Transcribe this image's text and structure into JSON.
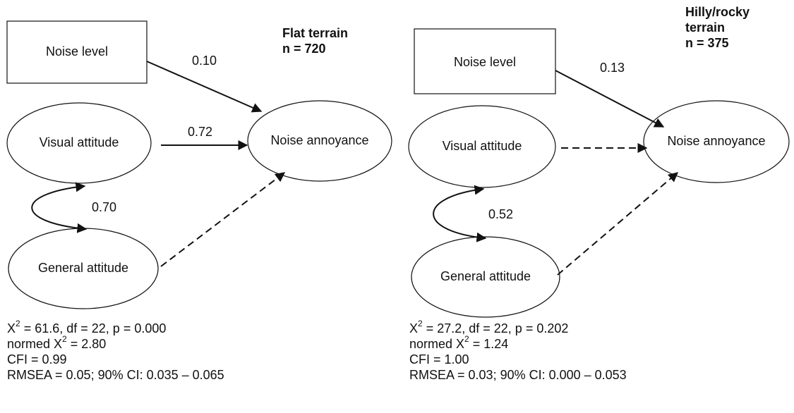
{
  "panels": [
    {
      "title": [
        "Flat terrain",
        "n = 720"
      ],
      "nodes": {
        "noise_level": "Noise level",
        "visual": "Visual attitude",
        "general": "General attitude",
        "annoyance": "Noise annoyance"
      },
      "edges": {
        "noise_to_annoyance": "0.10",
        "visual_to_annoyance": "0.72",
        "visual_general": "0.70"
      },
      "stats": [
        {
          "before": "X",
          "sup": "2",
          "after": " = 61.6, df = 22, p = 0.000"
        },
        {
          "before": "normed X",
          "sup": "2",
          "after": " = 2.80"
        },
        {
          "text": "CFI = 0.99"
        },
        {
          "text": "RMSEA = 0.05; 90% CI: 0.035 – 0.065"
        }
      ]
    },
    {
      "title": [
        "Hilly/rocky",
        "terrain",
        "n = 375"
      ],
      "nodes": {
        "noise_level": "Noise level",
        "visual": "Visual attitude",
        "general": "General attitude",
        "annoyance": "Noise annoyance"
      },
      "edges": {
        "noise_to_annoyance": "0.13",
        "visual_general": "0.52"
      },
      "stats": [
        {
          "before": "X",
          "sup": "2",
          "after": " = 27.2, df = 22, p = 0.202"
        },
        {
          "before": "normed X",
          "sup": "2",
          "after": " = 1.24"
        },
        {
          "text": "CFI = 1.00"
        },
        {
          "text": "RMSEA = 0.03; 90% CI: 0.000 – 0.053"
        }
      ]
    }
  ]
}
